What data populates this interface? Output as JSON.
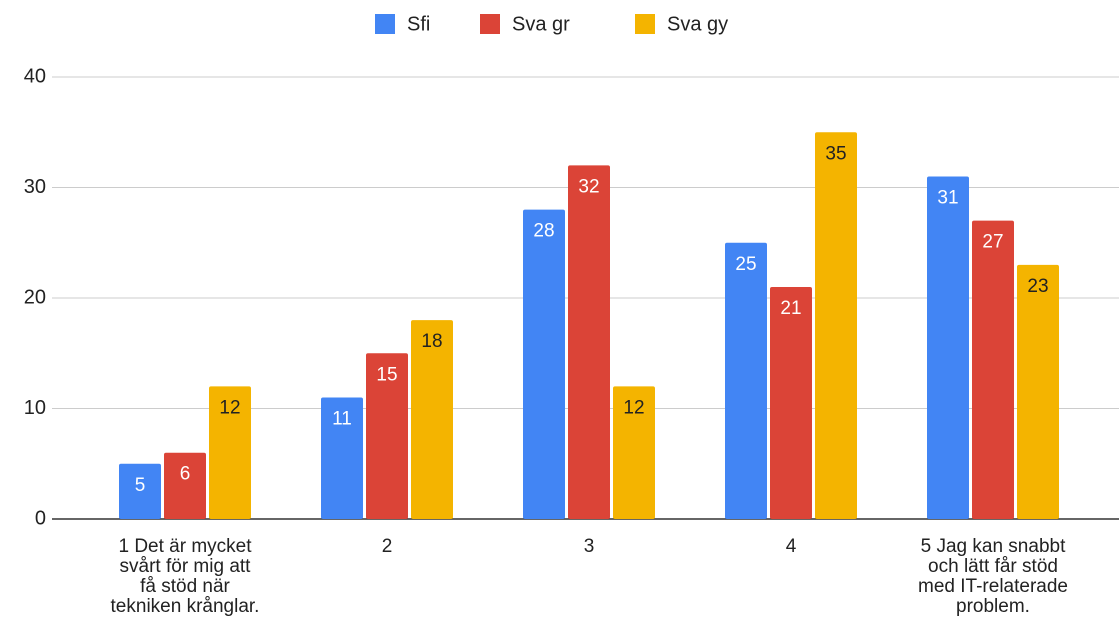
{
  "chart_data": {
    "type": "bar",
    "categories": [
      "1 Det är mycket svårt för mig att få stöd när tekniken krånglar.",
      "2",
      "3",
      "4",
      "5 Jag kan snabbt och lätt får stöd med IT-relaterade problem."
    ],
    "series": [
      {
        "name": "Sfi",
        "color": "#4285f4",
        "values": [
          5,
          11,
          28,
          25,
          31
        ]
      },
      {
        "name": "Sva gr",
        "color": "#db4437",
        "values": [
          6,
          15,
          32,
          21,
          27
        ]
      },
      {
        "name": "Sva gy",
        "color": "#f4b400",
        "values": [
          12,
          18,
          12,
          35,
          23
        ]
      }
    ],
    "ylim": [
      0,
      40
    ],
    "yticks": [
      0,
      10,
      20,
      30,
      40
    ],
    "grid": true,
    "legend": "top"
  }
}
